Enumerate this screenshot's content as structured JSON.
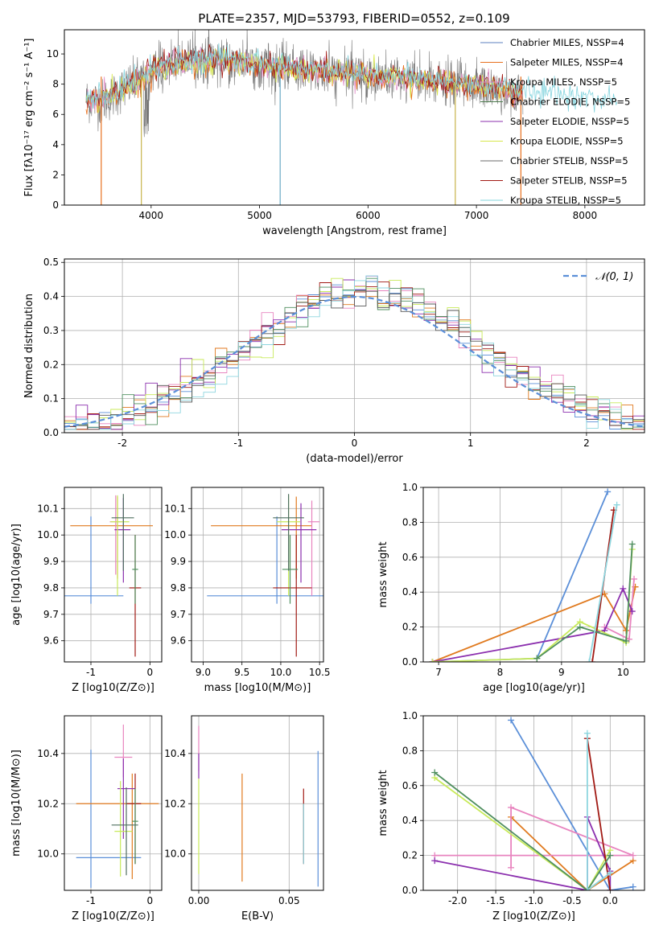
{
  "page": {
    "title": "PLATE=2357, MJD=53793, FIBERID=0552, z=0.109"
  },
  "colors": {
    "Chabrier MILES": "#5b7fbf",
    "Salpeter MILES": "#e8701f",
    "Kroupa MILES": "#e28ec8",
    "Chabrier ELODIE": "#4f7d4f",
    "Salpeter ELODIE": "#8b2fae",
    "Kroupa ELODIE": "#d7e84a",
    "Chabrier STELIB": "#6b6b6b",
    "Salpeter STELIB": "#a11a14",
    "Kroupa STELIB": "#84d4de",
    "mcolors": [
      "#5b8fd8",
      "#e07a1f",
      "#e884bf",
      "#8b2fae",
      "#c8ea5a",
      "#a11a14",
      "#4f8f5f",
      "#8ed6df"
    ]
  },
  "chart_data": [
    {
      "id": "spectrum",
      "type": "line",
      "xlabel": "wavelength [Angstrom, rest frame]",
      "ylabel": "Flux [fλ10⁻¹⁷ erg cm⁻² s⁻¹ A⁻¹]",
      "xlim": [
        3200,
        8550
      ],
      "ylim": [
        0,
        11.6
      ],
      "xticks": [
        4000,
        5000,
        6000,
        7000,
        8000
      ],
      "yticks": [
        0,
        2,
        4,
        6,
        8,
        10
      ],
      "legend_position": "top-right",
      "legend": [
        "Chabrier MILES, NSSP=4",
        "Salpeter MILES, NSSP=4",
        "Kroupa MILES, NSSP=5",
        "Chabrier ELODIE, NSSP=5",
        "Salpeter ELODIE, NSSP=5",
        "Kroupa ELODIE, NSSP=5",
        "Chabrier STELIB, NSSP=5",
        "Salpeter STELIB, NSSP=5",
        "Kroupa STELIB, NSSP=5"
      ],
      "data_envelope": {
        "x": [
          3400,
          3550,
          3700,
          3900,
          4000,
          4200,
          4500,
          4800,
          5000,
          5300,
          5600,
          5900,
          6200,
          6500,
          6800,
          7000,
          7200,
          7400
        ],
        "y": [
          7.0,
          6.8,
          7.5,
          8.3,
          8.8,
          9.4,
          9.6,
          9.5,
          9.2,
          9.0,
          8.7,
          8.6,
          8.4,
          8.2,
          8.0,
          7.9,
          7.6,
          7.2
        ]
      },
      "model_envelope": {
        "x": [
          3400,
          3600,
          3800,
          4000,
          4200,
          4500,
          4800,
          5000,
          5400,
          5800,
          6200,
          6600,
          7000,
          7400,
          7800,
          8000,
          8300
        ],
        "y": [
          6.8,
          7.2,
          7.9,
          8.9,
          9.4,
          9.6,
          9.5,
          9.3,
          9.0,
          8.8,
          8.5,
          8.2,
          7.9,
          7.5,
          7.2,
          7.0,
          6.9
        ]
      },
      "dropouts": [
        {
          "x": 3540,
          "color": "#e8701f"
        },
        {
          "x": 3910,
          "color": "#c8b44a"
        },
        {
          "x": 5190,
          "color": "#6aa9c4"
        },
        {
          "x": 6805,
          "color": "#c8b44a"
        },
        {
          "x": 7410,
          "color": "#e8701f"
        }
      ]
    },
    {
      "id": "residuals",
      "type": "histogram",
      "xlabel": "(data-model)/error",
      "ylabel": "Normed distribution",
      "xlim": [
        -2.5,
        2.5
      ],
      "ylim": [
        0,
        0.51
      ],
      "xticks": [
        -2,
        -1,
        0,
        1,
        2
      ],
      "yticks": [
        0.0,
        0.1,
        0.2,
        0.3,
        0.4,
        0.5
      ],
      "reference_curve": {
        "label": "𝒩(0, 1)",
        "mean": 0,
        "sigma": 1
      },
      "legend_position": "top-right"
    },
    {
      "id": "age_vs_Z",
      "type": "errorbar",
      "xlabel": "Z [log10(Z/Z⊙)]",
      "ylabel": "age  [log10(age/yr)]",
      "xlim": [
        -1.45,
        0.2
      ],
      "ylim": [
        9.52,
        10.18
      ],
      "xticks": [
        -1,
        0
      ],
      "yticks": [
        9.6,
        9.7,
        9.8,
        9.9,
        10.0,
        10.1
      ],
      "points": [
        {
          "x": -1.0,
          "y": 9.77,
          "xerr": [
            0.45,
            0.55
          ],
          "yerr": [
            0.03,
            0.3
          ],
          "color": "#5b8fd8"
        },
        {
          "x": -0.55,
          "y": 10.035,
          "xerr": [
            0.8,
            0.6
          ],
          "yerr": [
            0.2,
            0.11
          ],
          "color": "#e07a1f"
        },
        {
          "x": -0.58,
          "y": 10.05,
          "xerr": [
            0.1,
            0.1
          ],
          "yerr": [
            0.2,
            0.1
          ],
          "color": "#e884bf"
        },
        {
          "x": -0.45,
          "y": 10.02,
          "xerr": [
            0.15,
            0.12
          ],
          "yerr": [
            0.2,
            0.12
          ],
          "color": "#8b2fae"
        },
        {
          "x": -0.55,
          "y": 10.05,
          "xerr": [
            0.12,
            0.2
          ],
          "yerr": [
            0.28,
            0.1
          ],
          "color": "#c8ea5a"
        },
        {
          "x": -0.25,
          "y": 9.8,
          "xerr": [
            0.1,
            0.1
          ],
          "yerr": [
            0.26,
            0.2
          ],
          "color": "#a11a14"
        },
        {
          "x": -0.25,
          "y": 9.87,
          "xerr": [
            0.05,
            0.05
          ],
          "yerr": [
            0.13,
            0.13
          ],
          "color": "#4f8f5f"
        },
        {
          "x": -0.45,
          "y": 10.065,
          "xerr": [
            0.2,
            0.18
          ],
          "yerr": [
            0.2,
            0.09
          ],
          "color": "#4f6f5f"
        }
      ]
    },
    {
      "id": "age_vs_mass",
      "type": "errorbar",
      "xlabel": "mass [log10(M/M⊙)]",
      "ylabel": "",
      "xlim": [
        8.85,
        10.55
      ],
      "ylim": [
        9.52,
        10.18
      ],
      "xticks": [
        9.0,
        9.5,
        10.0,
        10.5
      ],
      "yticks": [
        9.6,
        9.7,
        9.8,
        9.9,
        10.0,
        10.1
      ],
      "points": [
        {
          "x": 9.95,
          "y": 9.77,
          "xerr": [
            0.9,
            0.65
          ],
          "yerr": [
            0.03,
            0.3
          ],
          "color": "#5b8fd8"
        },
        {
          "x": 10.2,
          "y": 10.035,
          "xerr": [
            1.1,
            0.2
          ],
          "yerr": [
            0.2,
            0.11
          ],
          "color": "#e07a1f"
        },
        {
          "x": 10.4,
          "y": 10.05,
          "xerr": [
            0.05,
            0.1
          ],
          "yerr": [
            0.28,
            0.08
          ],
          "color": "#e884bf"
        },
        {
          "x": 10.26,
          "y": 10.02,
          "xerr": [
            0.25,
            0.2
          ],
          "yerr": [
            0.2,
            0.1
          ],
          "color": "#8b2fae"
        },
        {
          "x": 10.1,
          "y": 10.05,
          "xerr": [
            0.15,
            0.15
          ],
          "yerr": [
            0.28,
            0.1
          ],
          "color": "#c8ea5a"
        },
        {
          "x": 10.2,
          "y": 9.8,
          "xerr": [
            0.3,
            0.2
          ],
          "yerr": [
            0.26,
            0.2
          ],
          "color": "#a11a14"
        },
        {
          "x": 10.12,
          "y": 9.87,
          "xerr": [
            0.1,
            0.1
          ],
          "yerr": [
            0.13,
            0.13
          ],
          "color": "#4f8f5f"
        },
        {
          "x": 10.1,
          "y": 10.065,
          "xerr": [
            0.2,
            0.2
          ],
          "yerr": [
            0.2,
            0.09
          ],
          "color": "#4f6f5f"
        }
      ]
    },
    {
      "id": "weight_vs_age",
      "type": "line",
      "xlabel": "age  [log10(age/yr)]",
      "ylabel": "mass weight",
      "xlim": [
        6.75,
        10.35
      ],
      "ylim": [
        0,
        1.0
      ],
      "xticks": [
        7,
        8,
        9,
        10
      ],
      "yticks": [
        0.0,
        0.2,
        0.4,
        0.6,
        0.8,
        1.0
      ],
      "series": [
        {
          "color": "#5b8fd8",
          "x": [
            6.9,
            8.6,
            9.75
          ],
          "y": [
            0.0,
            0.02,
            0.975
          ]
        },
        {
          "color": "#e07a1f",
          "x": [
            6.9,
            9.7,
            10.05,
            10.2
          ],
          "y": [
            0.0,
            0.39,
            0.18,
            0.43
          ]
        },
        {
          "color": "#e884bf",
          "x": [
            9.7,
            10.1,
            10.18
          ],
          "y": [
            0.2,
            0.13,
            0.475
          ]
        },
        {
          "color": "#8b2fae",
          "x": [
            6.9,
            9.7,
            10.0,
            10.15
          ],
          "y": [
            0.0,
            0.18,
            0.42,
            0.29
          ]
        },
        {
          "color": "#c8ea5a",
          "x": [
            6.9,
            8.6,
            9.3,
            10.05,
            10.15
          ],
          "y": [
            0.0,
            0.02,
            0.23,
            0.11,
            0.645
          ]
        },
        {
          "color": "#a11a14",
          "x": [
            9.5,
            9.85
          ],
          "y": [
            0.0,
            0.87
          ]
        },
        {
          "color": "#4f8f5f",
          "x": [
            8.6,
            9.3,
            10.05,
            10.15
          ],
          "y": [
            0.02,
            0.2,
            0.12,
            0.675
          ]
        },
        {
          "color": "#8ed6df",
          "x": [
            9.45,
            9.9
          ],
          "y": [
            0.0,
            0.9
          ]
        }
      ]
    },
    {
      "id": "mass_vs_Z",
      "type": "errorbar",
      "xlabel": "Z [log10(Z/Z⊙)]",
      "ylabel": "mass [log10(M/M⊙)]",
      "xlim": [
        -1.45,
        0.2
      ],
      "ylim": [
        9.855,
        10.55
      ],
      "xticks": [
        -1,
        0
      ],
      "yticks": [
        10.0,
        10.2,
        10.4
      ],
      "points": [
        {
          "x": -1.0,
          "y": 9.985,
          "xerr": [
            0.25,
            0.85
          ],
          "yerr": [
            0.12,
            0.43
          ],
          "color": "#5b8fd8"
        },
        {
          "x": -0.3,
          "y": 10.2,
          "xerr": [
            0.95,
            0.45
          ],
          "yerr": [
            0.3,
            0.12
          ],
          "color": "#e07a1f"
        },
        {
          "x": -0.45,
          "y": 10.385,
          "xerr": [
            0.15,
            0.15
          ],
          "yerr": [
            0.08,
            0.13
          ],
          "color": "#e884bf"
        },
        {
          "x": -0.45,
          "y": 10.26,
          "xerr": [
            0.1,
            0.2
          ],
          "yerr": [
            0.2,
            0.12
          ],
          "color": "#8b2fae"
        },
        {
          "x": -0.5,
          "y": 10.09,
          "xerr": [
            0.1,
            0.2
          ],
          "yerr": [
            0.18,
            0.2
          ],
          "color": "#c8ea5a"
        },
        {
          "x": -0.25,
          "y": 10.2,
          "xerr": [
            0.15,
            0.1
          ],
          "yerr": [
            0.24,
            0.12
          ],
          "color": "#a11a14"
        },
        {
          "x": -0.25,
          "y": 10.13,
          "xerr": [
            0.05,
            0.05
          ],
          "yerr": [
            0.17,
            0.13
          ],
          "color": "#4f8f5f"
        },
        {
          "x": -0.4,
          "y": 10.115,
          "xerr": [
            0.25,
            0.2
          ],
          "yerr": [
            0.2,
            0.15
          ],
          "color": "#4f6f5f"
        }
      ]
    },
    {
      "id": "mass_vs_ebv",
      "type": "errorbar",
      "xlabel": "E(B-V)",
      "ylabel": "",
      "xlim": [
        -0.004,
        0.069
      ],
      "ylim": [
        9.855,
        10.55
      ],
      "xticks": [
        0.0,
        0.05
      ],
      "yticks": [
        10.0,
        10.2,
        10.4
      ],
      "points": [
        {
          "x": 0.066,
          "y": 10.0,
          "xerr": [
            0,
            0
          ],
          "yerr": [
            0.13,
            0.41
          ],
          "color": "#5b8fd8"
        },
        {
          "x": 0.024,
          "y": 10.1,
          "xerr": [
            0,
            0
          ],
          "yerr": [
            0.21,
            0.22
          ],
          "color": "#e07a1f"
        },
        {
          "x": 0.0,
          "y": 10.43,
          "xerr": [
            0,
            0
          ],
          "yerr": [
            0.1,
            0.08
          ],
          "color": "#e884bf"
        },
        {
          "x": 0.0,
          "y": 10.37,
          "xerr": [
            0,
            0
          ],
          "yerr": [
            0.07,
            0.03
          ],
          "color": "#8b2fae"
        },
        {
          "x": 0.0,
          "y": 10.1,
          "xerr": [
            0,
            0
          ],
          "yerr": [
            0.18,
            0.2
          ],
          "color": "#c8ea5a"
        },
        {
          "x": 0.058,
          "y": 10.2,
          "xerr": [
            0,
            0
          ],
          "yerr": [
            0.24,
            0.06
          ],
          "color": "#a11a14"
        },
        {
          "x": 0.058,
          "y": 10.1,
          "xerr": [
            0,
            0
          ],
          "yerr": [
            0.14,
            0.1
          ],
          "color": "#8ed6df"
        }
      ]
    },
    {
      "id": "weight_vs_Z",
      "type": "line",
      "xlabel": "Z [log10(Z/Z⊙)]",
      "ylabel": "mass weight",
      "xlim": [
        -2.45,
        0.45
      ],
      "ylim": [
        0,
        1.0
      ],
      "xticks": [
        -2.0,
        -1.5,
        -1.0,
        -0.5,
        0.0
      ],
      "yticks": [
        0.0,
        0.2,
        0.4,
        0.6,
        0.8,
        1.0
      ],
      "series": [
        {
          "color": "#5b8fd8",
          "x": [
            -1.3,
            0.0,
            0.3
          ],
          "y": [
            0.975,
            0.0,
            0.02
          ]
        },
        {
          "color": "#e07a1f",
          "x": [
            -1.3,
            -0.3,
            0.3
          ],
          "y": [
            0.42,
            0.0,
            0.17
          ]
        },
        {
          "color": "#e884bf",
          "x": [
            -1.3,
            -1.3,
            0.3,
            -2.3
          ],
          "y": [
            0.13,
            0.475,
            0.2,
            0.2
          ]
        },
        {
          "color": "#8b2fae",
          "x": [
            -2.3,
            -0.3,
            -0.3,
            0.0,
            0.0
          ],
          "y": [
            0.17,
            0.0,
            0.42,
            0.11,
            0.0
          ]
        },
        {
          "color": "#c8ea5a",
          "x": [
            -2.3,
            -0.3,
            0.0
          ],
          "y": [
            0.645,
            0.0,
            0.23
          ]
        },
        {
          "color": "#a11a14",
          "x": [
            -0.3,
            0.0
          ],
          "y": [
            0.87,
            0.0
          ]
        },
        {
          "color": "#4f8f5f",
          "x": [
            -2.3,
            -0.3,
            0.0
          ],
          "y": [
            0.675,
            0.0,
            0.2
          ]
        },
        {
          "color": "#8ed6df",
          "x": [
            -0.3,
            -0.3,
            0.0
          ],
          "y": [
            0.9,
            0.0,
            0.1
          ]
        }
      ]
    }
  ]
}
